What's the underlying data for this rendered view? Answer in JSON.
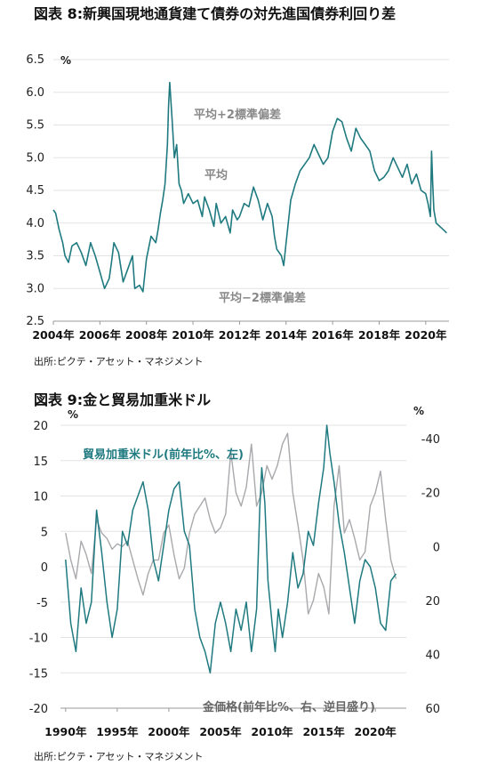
{
  "chart1": {
    "title": "図表 8:新興国現地通貨建て債券の対先進国債券利回り差",
    "source": "出所:ピクテ・アセット・マネジメント",
    "unit": "%",
    "chart_data": {
      "type": "line",
      "ylim": [
        2.5,
        6.5
      ],
      "yticks": [
        "6.5",
        "6.0",
        "5.5",
        "5.0",
        "4.5",
        "4.0",
        "3.5",
        "3.0",
        "2.5"
      ],
      "xticks": [
        "2004年",
        "2006年",
        "2008年",
        "2010年",
        "2012年",
        "2014年",
        "2016年",
        "2018年",
        "2020年"
      ],
      "xlim": [
        2004.0,
        2021.0
      ],
      "grid": true,
      "color": "#1f7a80",
      "annotations": {
        "plus2": "平均+2標準偏差",
        "mean": "平均",
        "minus2": "平均−2標準偏差"
      },
      "series": [
        {
          "x": [
            2004.0,
            2004.1,
            2004.25,
            2004.4,
            2004.5,
            2004.65,
            2004.8,
            2005.0,
            2005.2,
            2005.4,
            2005.6,
            2005.8,
            2006.0,
            2006.2,
            2006.4,
            2006.5,
            2006.6,
            2006.8,
            2007.0,
            2007.2,
            2007.4,
            2007.5,
            2007.7,
            2007.85,
            2008.0,
            2008.2,
            2008.4,
            2008.5,
            2008.6,
            2008.7,
            2008.8,
            2008.9,
            2008.95,
            2009.0,
            2009.1,
            2009.2,
            2009.3,
            2009.4,
            2009.5,
            2009.6,
            2009.8,
            2010.0,
            2010.2,
            2010.4,
            2010.5,
            2010.7,
            2010.9,
            2011.0,
            2011.2,
            2011.4,
            2011.6,
            2011.7,
            2011.9,
            2012.0,
            2012.2,
            2012.4,
            2012.6,
            2012.8,
            2013.0,
            2013.2,
            2013.4,
            2013.5,
            2013.6,
            2013.8,
            2013.9,
            2014.0,
            2014.2,
            2014.4,
            2014.6,
            2014.8,
            2015.0,
            2015.2,
            2015.4,
            2015.6,
            2015.8,
            2016.0,
            2016.2,
            2016.4,
            2016.6,
            2016.8,
            2017.0,
            2017.2,
            2017.4,
            2017.6,
            2017.8,
            2018.0,
            2018.2,
            2018.4,
            2018.6,
            2018.8,
            2019.0,
            2019.2,
            2019.4,
            2019.6,
            2019.8,
            2020.0,
            2020.1,
            2020.2,
            2020.25,
            2020.3,
            2020.35,
            2020.45,
            2020.6,
            2020.75,
            2020.9
          ],
          "y": [
            4.2,
            4.15,
            3.9,
            3.7,
            3.5,
            3.4,
            3.65,
            3.7,
            3.55,
            3.35,
            3.7,
            3.5,
            3.25,
            3.0,
            3.15,
            3.4,
            3.7,
            3.55,
            3.1,
            3.3,
            3.5,
            3.0,
            3.05,
            2.95,
            3.45,
            3.8,
            3.7,
            3.9,
            4.15,
            4.35,
            4.6,
            5.2,
            5.8,
            6.15,
            5.6,
            5.0,
            5.2,
            4.6,
            4.5,
            4.3,
            4.45,
            4.3,
            4.35,
            4.1,
            4.4,
            4.2,
            3.95,
            4.3,
            4.0,
            4.1,
            3.85,
            4.2,
            4.05,
            4.1,
            4.3,
            4.25,
            4.55,
            4.35,
            4.05,
            4.3,
            4.1,
            3.8,
            3.6,
            3.5,
            3.35,
            3.7,
            4.35,
            4.6,
            4.8,
            4.9,
            5.0,
            5.2,
            5.05,
            4.9,
            5.0,
            5.4,
            5.6,
            5.55,
            5.3,
            5.1,
            5.45,
            5.3,
            5.2,
            5.1,
            4.8,
            4.65,
            4.7,
            4.8,
            5.0,
            4.85,
            4.7,
            4.9,
            4.6,
            4.75,
            4.5,
            4.45,
            4.3,
            4.1,
            5.1,
            4.6,
            4.2,
            4.0,
            3.95,
            3.9,
            3.85
          ]
        }
      ]
    }
  },
  "chart2": {
    "title": "図表 9:金と貿易加重米ドル",
    "source": "出所:ピクテ・アセット・マネジメント",
    "unit_left": "%",
    "unit_right": "%",
    "chart_data": {
      "type": "line",
      "ylim_left": [
        -20,
        20
      ],
      "ylim_right": [
        60,
        -45
      ],
      "yticks_left": [
        "20",
        "15",
        "10",
        "5",
        "0",
        "-5",
        "-10",
        "-15",
        "-20"
      ],
      "yticks_right": [
        "-40",
        "-20",
        "0",
        "20",
        "40",
        "60"
      ],
      "xticks": [
        "1990年",
        "1995年",
        "2000年",
        "2005年",
        "2010年",
        "2015年",
        "2020年"
      ],
      "xlim": [
        1989.5,
        2023.0
      ],
      "grid": true,
      "series": [
        {
          "name": "貿易加重米ドル(前年比%、左)",
          "axis": "left",
          "color": "#1f7a80",
          "x": [
            1990.0,
            1990.5,
            1991.0,
            1991.5,
            1992.0,
            1992.5,
            1993.0,
            1993.5,
            1994.0,
            1994.5,
            1995.0,
            1995.5,
            1996.0,
            1996.5,
            1997.0,
            1997.5,
            1998.0,
            1998.5,
            1999.0,
            1999.5,
            2000.0,
            2000.5,
            2001.0,
            2001.5,
            2002.0,
            2002.5,
            2003.0,
            2003.5,
            2004.0,
            2004.5,
            2005.0,
            2005.5,
            2006.0,
            2006.5,
            2007.0,
            2007.5,
            2008.0,
            2008.5,
            2008.8,
            2009.0,
            2009.3,
            2009.6,
            2010.0,
            2010.3,
            2010.6,
            2011.0,
            2011.5,
            2012.0,
            2012.5,
            2013.0,
            2013.5,
            2014.0,
            2014.5,
            2015.0,
            2015.3,
            2015.6,
            2016.0,
            2016.5,
            2017.0,
            2017.5,
            2018.0,
            2018.5,
            2019.0,
            2019.5,
            2020.0,
            2020.5,
            2021.0,
            2021.5,
            2022.0
          ],
          "y": [
            1,
            -8,
            -12,
            -3,
            -8,
            -5,
            8,
            2,
            -5,
            -10,
            -6,
            5,
            3,
            8,
            10,
            12,
            8,
            1,
            -2,
            3,
            8,
            11,
            12,
            5,
            3,
            -6,
            -10,
            -12,
            -15,
            -8,
            -5,
            -8,
            -12,
            -6,
            -9,
            -5,
            -12,
            -6,
            8,
            14,
            9,
            -2,
            -8,
            -12,
            -6,
            -10,
            -5,
            2,
            -3,
            -1,
            5,
            3,
            9,
            14,
            20,
            16,
            12,
            6,
            2,
            -3,
            -8,
            -2,
            1,
            0,
            -3,
            -8,
            -9,
            -2,
            -1
          ]
        },
        {
          "name": "金価格(前年比%、右、逆目盛り)",
          "axis": "right",
          "color": "#a9a9ad",
          "x": [
            1990.0,
            1990.5,
            1991.0,
            1991.5,
            1992.0,
            1992.5,
            1993.0,
            1993.5,
            1994.0,
            1994.5,
            1995.0,
            1995.5,
            1996.0,
            1996.5,
            1997.0,
            1997.5,
            1998.0,
            1998.5,
            1999.0,
            1999.5,
            2000.0,
            2000.5,
            2001.0,
            2001.5,
            2002.0,
            2002.5,
            2003.0,
            2003.5,
            2004.0,
            2004.5,
            2005.0,
            2005.5,
            2006.0,
            2006.5,
            2007.0,
            2007.5,
            2008.0,
            2008.5,
            2009.0,
            2009.5,
            2010.0,
            2010.5,
            2011.0,
            2011.5,
            2012.0,
            2012.5,
            2013.0,
            2013.5,
            2014.0,
            2014.5,
            2015.0,
            2015.5,
            2016.0,
            2016.5,
            2017.0,
            2017.5,
            2018.0,
            2018.5,
            2019.0,
            2019.5,
            2020.0,
            2020.5,
            2021.0,
            2021.5,
            2022.0
          ],
          "y": [
            -5,
            5,
            12,
            -2,
            3,
            10,
            -10,
            -5,
            -3,
            1,
            -1,
            0,
            -2,
            5,
            12,
            18,
            10,
            5,
            5,
            -5,
            -8,
            3,
            12,
            8,
            -5,
            -12,
            -15,
            -18,
            -10,
            -5,
            -7,
            -12,
            -35,
            -20,
            -15,
            -22,
            -38,
            -15,
            -20,
            -30,
            -25,
            -30,
            -38,
            -42,
            -20,
            -8,
            5,
            25,
            20,
            10,
            15,
            25,
            -15,
            -30,
            -5,
            -10,
            -3,
            5,
            2,
            -15,
            -20,
            -28,
            -10,
            5,
            12
          ]
        }
      ],
      "annotations": {
        "dollar": "貿易加重米ドル(前年比%、左)",
        "gold": "金価格(前年比%、右、逆目盛り)"
      }
    }
  }
}
